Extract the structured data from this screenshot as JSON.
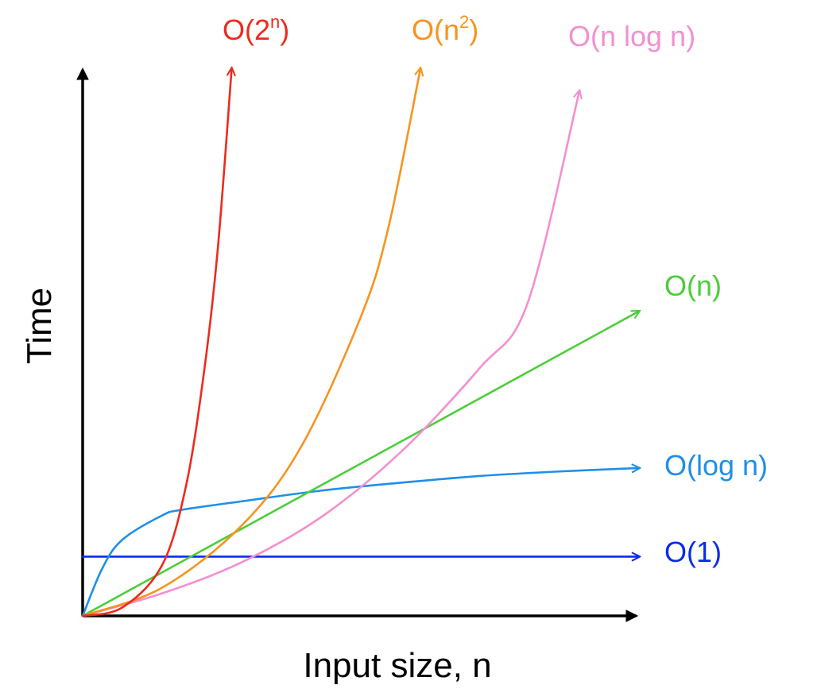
{
  "chart_data": {
    "type": "line",
    "title": "",
    "xlabel": "Input size, n",
    "ylabel": "Time",
    "grid": false,
    "legend": "none",
    "axes_ticks": "none",
    "series": [
      {
        "key": "o1",
        "name": "O(1)",
        "label_base": "O(1)",
        "label_sup": "",
        "label_close": "",
        "color": "#0a2be8",
        "arrow": true,
        "x": [
          0,
          14
        ],
        "y": [
          1.05,
          1.05
        ]
      },
      {
        "key": "ologn",
        "name": "O(log n)",
        "label_base": "O(log n)",
        "label_sup": "",
        "label_close": "",
        "color": "#1f8fe8",
        "arrow": true,
        "x": [
          0,
          0.5,
          1,
          2,
          2.5,
          4,
          6,
          8,
          10,
          12,
          14
        ],
        "y": [
          0,
          0.85,
          1.35,
          1.78,
          1.88,
          2.03,
          2.22,
          2.36,
          2.48,
          2.56,
          2.62
        ]
      },
      {
        "key": "on",
        "name": "O(n)",
        "label_base": "O(n)",
        "label_sup": "",
        "label_close": "",
        "color": "#4ccd3a",
        "arrow": true,
        "x": [
          0,
          14
        ],
        "y": [
          0,
          5.4
        ]
      },
      {
        "key": "onlogn",
        "name": "O(n log n)",
        "label_base": "O(n log n)",
        "label_sup": "",
        "label_close": "",
        "color": "#f48fd0",
        "arrow": true,
        "x": [
          0,
          2,
          4,
          6,
          8,
          10,
          11.2,
          12.5
        ],
        "y": [
          0,
          0.4,
          0.95,
          1.75,
          2.9,
          4.4,
          5.55,
          9.3
        ]
      },
      {
        "key": "on2",
        "name": "O(n²)",
        "label_base": "O(n",
        "label_sup": "2",
        "label_close": ")",
        "color": "#f7931e",
        "arrow": true,
        "x": [
          0,
          2,
          4,
          5.5,
          7,
          7.7,
          8.5
        ],
        "y": [
          0,
          0.5,
          1.6,
          3.0,
          5.3,
          6.9,
          9.7
        ]
      },
      {
        "key": "o2n",
        "name": "O(2ⁿ)",
        "label_base": "O(2",
        "label_sup": "n",
        "label_close": ")",
        "color": "#ee2a1e",
        "arrow": true,
        "x": [
          0,
          1,
          2,
          2.6,
          3.05,
          3.4,
          3.75
        ],
        "y": [
          0,
          0.15,
          0.9,
          2.3,
          4.3,
          6.5,
          9.7
        ]
      }
    ]
  }
}
